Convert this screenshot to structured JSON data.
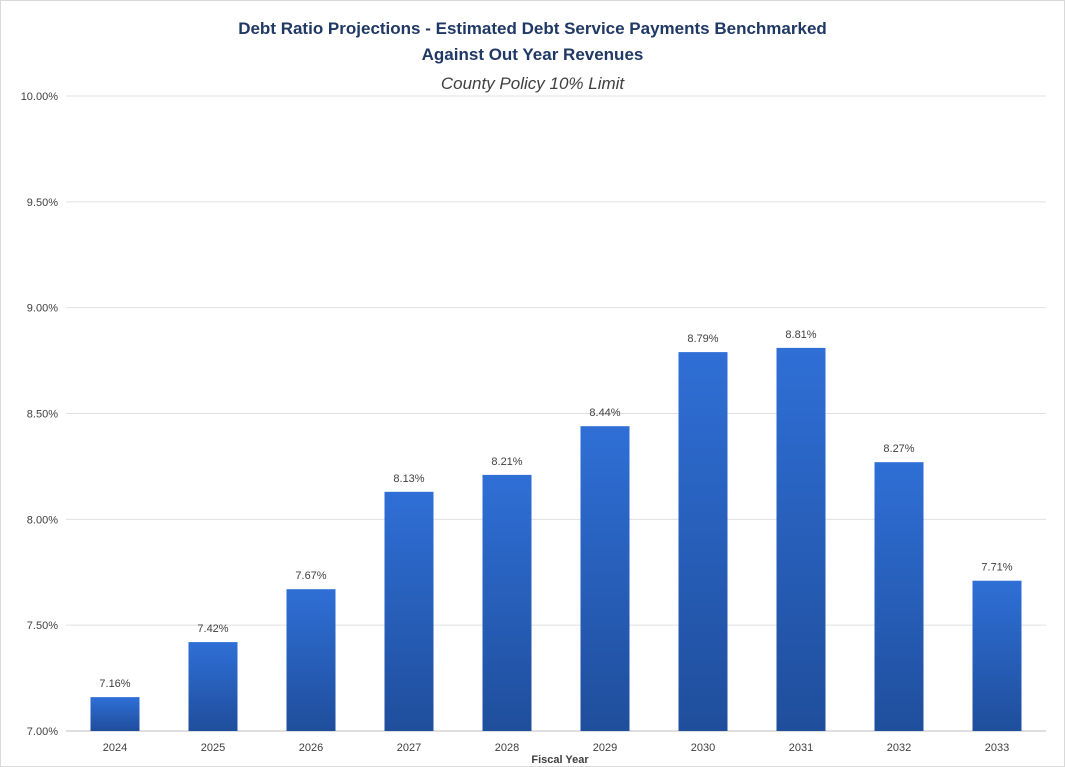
{
  "chart_data": {
    "type": "bar",
    "title_line1": "Debt Ratio Projections - Estimated Debt Service Payments Benchmarked",
    "title_line2": "Against Out Year Revenues",
    "subtitle": "County Policy 10% Limit",
    "xlabel": "Fiscal Year",
    "ylabel": "",
    "categories": [
      "2024",
      "2025",
      "2026",
      "2027",
      "2028",
      "2029",
      "2030",
      "2031",
      "2032",
      "2033"
    ],
    "values": [
      7.16,
      7.42,
      7.67,
      8.13,
      8.21,
      8.44,
      8.79,
      8.81,
      8.27,
      7.71
    ],
    "data_labels": [
      "7.16%",
      "7.42%",
      "7.67%",
      "8.13%",
      "8.21%",
      "8.44%",
      "8.79%",
      "8.81%",
      "8.27%",
      "7.71%"
    ],
    "yticks": [
      7.0,
      7.5,
      8.0,
      8.5,
      9.0,
      9.5,
      10.0
    ],
    "ytick_labels": [
      "7.00%",
      "7.50%",
      "8.00%",
      "8.50%",
      "9.00%",
      "9.50%",
      "10.00%"
    ],
    "ylim": [
      7.0,
      10.0
    ],
    "grid": true,
    "legend": "none",
    "colors": {
      "bar_top": "#2f6fd6",
      "bar_bottom": "#1f4e9c",
      "title": "#1f3864",
      "grid": "#e0e0e0"
    }
  }
}
